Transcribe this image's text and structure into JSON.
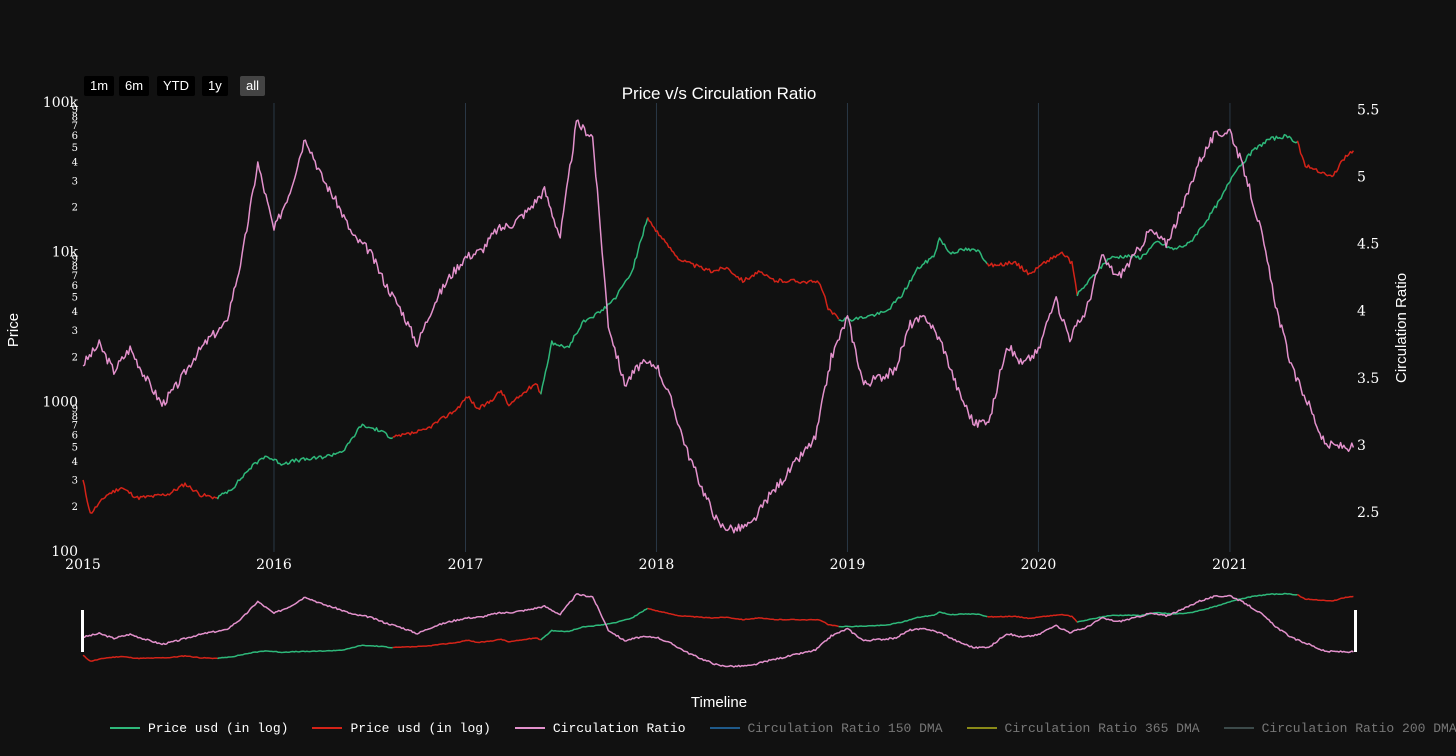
{
  "range_buttons": [
    {
      "label": "1m",
      "active": false
    },
    {
      "label": "6m",
      "active": false
    },
    {
      "label": "YTD",
      "active": false
    },
    {
      "label": "1y",
      "active": false
    },
    {
      "label": "all",
      "active": true
    }
  ],
  "colors": {
    "price_up": "#2eb87a",
    "price_down": "#d42318",
    "circulation_ratio": "#e391cc",
    "dma150": "#1f5a8a",
    "dma365": "#8a8a18",
    "dma200": "#3c4a4a",
    "background": "#111111",
    "grid": "#2a3846"
  },
  "legend": [
    {
      "label": "Price usd (in log)",
      "color_key": "price_up",
      "enabled": true
    },
    {
      "label": "Price usd (in log)",
      "color_key": "price_down",
      "enabled": true
    },
    {
      "label": "Circulation Ratio",
      "color_key": "circulation_ratio",
      "enabled": true
    },
    {
      "label": "Circulation Ratio 150 DMA",
      "color_key": "dma150",
      "enabled": false
    },
    {
      "label": "Circulation Ratio 365 DMA",
      "color_key": "dma365",
      "enabled": false
    },
    {
      "label": "Circulation Ratio 200 DMA",
      "color_key": "dma200",
      "enabled": false
    }
  ],
  "chart_data": {
    "type": "line",
    "title": "Price v/s Circulation Ratio",
    "xlabel": "Timeline",
    "ylabel_left": "Price",
    "ylabel_right": "Circulation Ratio",
    "x_ticks": [
      "2015",
      "2016",
      "2017",
      "2018",
      "2019",
      "2020",
      "2021"
    ],
    "xlim": [
      "2015-01",
      "2021-08"
    ],
    "y_left_scale": "log",
    "y_left_lim": [
      100,
      100000
    ],
    "y_left_major_ticks": [
      "100",
      "1000",
      "10k",
      "100k"
    ],
    "y_left_minor_ticks": [
      "2",
      "3",
      "4",
      "5",
      "6",
      "7",
      "8",
      "9"
    ],
    "y_right_lim": [
      2.2,
      5.55
    ],
    "y_right_ticks": [
      "2.5",
      "3",
      "3.5",
      "4",
      "4.5",
      "5",
      "5.5"
    ],
    "vertical_grid": true,
    "legend_position": "bottom",
    "series": [
      {
        "name": "Price usd (in log)",
        "axis": "left",
        "segments": [
          {
            "trend": "down",
            "points": [
              [
                "2015-01-01",
                300
              ],
              [
                "2015-01-15",
                180
              ],
              [
                "2015-02-15",
                240
              ],
              [
                "2015-03-15",
                270
              ],
              [
                "2015-04-15",
                230
              ],
              [
                "2015-05-15",
                235
              ],
              [
                "2015-06-15",
                245
              ],
              [
                "2015-07-15",
                285
              ],
              [
                "2015-08-15",
                240
              ],
              [
                "2015-09-15",
                230
              ]
            ]
          },
          {
            "trend": "up",
            "points": [
              [
                "2015-09-15",
                230
              ],
              [
                "2015-10-15",
                270
              ],
              [
                "2015-11-15",
                360
              ],
              [
                "2015-12-15",
                440
              ],
              [
                "2016-01-15",
                390
              ],
              [
                "2016-02-15",
                410
              ],
              [
                "2016-03-15",
                420
              ],
              [
                "2016-04-15",
                440
              ],
              [
                "2016-05-15",
                480
              ],
              [
                "2016-06-15",
                700
              ],
              [
                "2016-07-15",
                660
              ],
              [
                "2016-08-15",
                580
              ]
            ]
          },
          {
            "trend": "down",
            "points": [
              [
                "2016-08-15",
                580
              ],
              [
                "2016-10-15",
                650
              ],
              [
                "2016-12-15",
                900
              ],
              [
                "2017-01-05",
                1100
              ],
              [
                "2017-01-25",
                900
              ],
              [
                "2017-02-15",
                1000
              ],
              [
                "2017-03-10",
                1200
              ],
              [
                "2017-03-25",
                950
              ],
              [
                "2017-05-15",
                1350
              ],
              [
                "2017-05-25",
                1150
              ]
            ]
          },
          {
            "trend": "up",
            "points": [
              [
                "2017-05-25",
                1150
              ],
              [
                "2017-06-15",
                2500
              ],
              [
                "2017-07-15",
                2300
              ],
              [
                "2017-08-15",
                3500
              ],
              [
                "2017-09-15",
                4000
              ],
              [
                "2017-10-15",
                5000
              ],
              [
                "2017-11-15",
                7500
              ],
              [
                "2017-12-15",
                17000
              ]
            ]
          },
          {
            "trend": "down",
            "points": [
              [
                "2017-12-15",
                17000
              ],
              [
                "2018-01-15",
                12000
              ],
              [
                "2018-02-15",
                9000
              ],
              [
                "2018-03-15",
                8200
              ],
              [
                "2018-04-15",
                7500
              ],
              [
                "2018-05-15",
                8000
              ],
              [
                "2018-06-15",
                6500
              ],
              [
                "2018-07-15",
                7400
              ],
              [
                "2018-08-15",
                6500
              ],
              [
                "2018-09-15",
                6500
              ],
              [
                "2018-10-15",
                6400
              ],
              [
                "2018-11-10",
                6300
              ],
              [
                "2018-11-25",
                4200
              ],
              [
                "2018-12-15",
                3600
              ]
            ]
          },
          {
            "trend": "up",
            "points": [
              [
                "2018-12-15",
                3600
              ],
              [
                "2019-01-15",
                3600
              ],
              [
                "2019-02-15",
                3800
              ],
              [
                "2019-03-15",
                4000
              ],
              [
                "2019-04-15",
                5200
              ],
              [
                "2019-05-15",
                7800
              ],
              [
                "2019-06-15",
                9500
              ],
              [
                "2019-06-26",
                12500
              ],
              [
                "2019-07-15",
                10000
              ],
              [
                "2019-08-15",
                10500
              ],
              [
                "2019-09-10",
                10200
              ],
              [
                "2019-09-25",
                8400
              ]
            ]
          },
          {
            "trend": "down",
            "points": [
              [
                "2019-09-25",
                8400
              ],
              [
                "2019-10-15",
                8200
              ],
              [
                "2019-11-15",
                8700
              ],
              [
                "2019-12-15",
                7200
              ],
              [
                "2020-01-15",
                8700
              ],
              [
                "2020-02-15",
                10000
              ],
              [
                "2020-03-05",
                8500
              ],
              [
                "2020-03-15",
                5200
              ]
            ]
          },
          {
            "trend": "up",
            "points": [
              [
                "2020-03-15",
                5200
              ],
              [
                "2020-04-15",
                7000
              ],
              [
                "2020-05-15",
                9200
              ],
              [
                "2020-06-15",
                9500
              ],
              [
                "2020-07-15",
                9300
              ],
              [
                "2020-08-15",
                11800
              ],
              [
                "2020-09-15",
                10500
              ],
              [
                "2020-10-15",
                11500
              ],
              [
                "2020-11-15",
                16000
              ],
              [
                "2020-12-15",
                23000
              ],
              [
                "2021-01-10",
                35000
              ],
              [
                "2021-02-15",
                48000
              ],
              [
                "2021-03-15",
                57000
              ],
              [
                "2021-04-15",
                60000
              ],
              [
                "2021-05-10",
                55000
              ]
            ]
          },
          {
            "trend": "down",
            "points": [
              [
                "2021-05-10",
                55000
              ],
              [
                "2021-05-25",
                38000
              ],
              [
                "2021-06-15",
                36000
              ],
              [
                "2021-07-15",
                32000
              ],
              [
                "2021-08-10",
                44000
              ],
              [
                "2021-08-25",
                48000
              ]
            ]
          }
        ]
      },
      {
        "name": "Circulation Ratio",
        "axis": "right",
        "points": [
          [
            "2015-01-01",
            3.6
          ],
          [
            "2015-02-01",
            3.75
          ],
          [
            "2015-03-01",
            3.55
          ],
          [
            "2015-04-01",
            3.72
          ],
          [
            "2015-05-01",
            3.5
          ],
          [
            "2015-06-01",
            3.3
          ],
          [
            "2015-07-01",
            3.45
          ],
          [
            "2015-08-01",
            3.65
          ],
          [
            "2015-09-01",
            3.8
          ],
          [
            "2015-10-01",
            3.9
          ],
          [
            "2015-11-01",
            4.4
          ],
          [
            "2015-12-01",
            5.1
          ],
          [
            "2016-01-01",
            4.6
          ],
          [
            "2016-02-01",
            4.9
          ],
          [
            "2016-03-01",
            5.3
          ],
          [
            "2016-04-01",
            5.0
          ],
          [
            "2016-05-01",
            4.8
          ],
          [
            "2016-06-01",
            4.55
          ],
          [
            "2016-07-01",
            4.45
          ],
          [
            "2016-08-01",
            4.2
          ],
          [
            "2016-09-01",
            4.0
          ],
          [
            "2016-10-01",
            3.75
          ],
          [
            "2016-11-01",
            4.05
          ],
          [
            "2016-12-01",
            4.25
          ],
          [
            "2017-01-01",
            4.4
          ],
          [
            "2017-02-01",
            4.45
          ],
          [
            "2017-03-01",
            4.6
          ],
          [
            "2017-04-01",
            4.65
          ],
          [
            "2017-05-01",
            4.75
          ],
          [
            "2017-06-01",
            4.9
          ],
          [
            "2017-07-01",
            4.55
          ],
          [
            "2017-08-01",
            5.4
          ],
          [
            "2017-09-01",
            5.3
          ],
          [
            "2017-10-01",
            3.9
          ],
          [
            "2017-11-01",
            3.45
          ],
          [
            "2017-12-01",
            3.6
          ],
          [
            "2018-01-01",
            3.6
          ],
          [
            "2018-02-01",
            3.3
          ],
          [
            "2018-03-01",
            2.95
          ],
          [
            "2018-04-01",
            2.65
          ],
          [
            "2018-05-01",
            2.4
          ],
          [
            "2018-06-01",
            2.37
          ],
          [
            "2018-07-01",
            2.4
          ],
          [
            "2018-08-01",
            2.6
          ],
          [
            "2018-09-01",
            2.75
          ],
          [
            "2018-10-01",
            2.9
          ],
          [
            "2018-11-01",
            3.05
          ],
          [
            "2018-12-01",
            3.65
          ],
          [
            "2019-01-01",
            3.95
          ],
          [
            "2019-02-01",
            3.45
          ],
          [
            "2019-03-01",
            3.5
          ],
          [
            "2019-04-01",
            3.55
          ],
          [
            "2019-05-01",
            3.9
          ],
          [
            "2019-06-01",
            3.95
          ],
          [
            "2019-07-01",
            3.75
          ],
          [
            "2019-08-01",
            3.4
          ],
          [
            "2019-09-01",
            3.15
          ],
          [
            "2019-10-01",
            3.2
          ],
          [
            "2019-11-01",
            3.75
          ],
          [
            "2019-12-01",
            3.6
          ],
          [
            "2020-01-01",
            3.7
          ],
          [
            "2020-02-01",
            4.1
          ],
          [
            "2020-03-01",
            3.8
          ],
          [
            "2020-04-01",
            4.0
          ],
          [
            "2020-05-01",
            4.4
          ],
          [
            "2020-06-01",
            4.25
          ],
          [
            "2020-07-01",
            4.4
          ],
          [
            "2020-08-01",
            4.6
          ],
          [
            "2020-09-01",
            4.5
          ],
          [
            "2020-10-01",
            4.75
          ],
          [
            "2020-11-01",
            5.1
          ],
          [
            "2020-12-01",
            5.3
          ],
          [
            "2021-01-01",
            5.35
          ],
          [
            "2021-02-01",
            5.0
          ],
          [
            "2021-03-01",
            4.6
          ],
          [
            "2021-04-01",
            4.0
          ],
          [
            "2021-05-01",
            3.55
          ],
          [
            "2021-06-01",
            3.3
          ],
          [
            "2021-07-01",
            3.0
          ],
          [
            "2021-08-25",
            2.98
          ]
        ]
      },
      {
        "name": "Circulation Ratio 150 DMA",
        "visible": false
      },
      {
        "name": "Circulation Ratio 365 DMA",
        "visible": false
      },
      {
        "name": "Circulation Ratio 200 DMA",
        "visible": false
      }
    ]
  }
}
